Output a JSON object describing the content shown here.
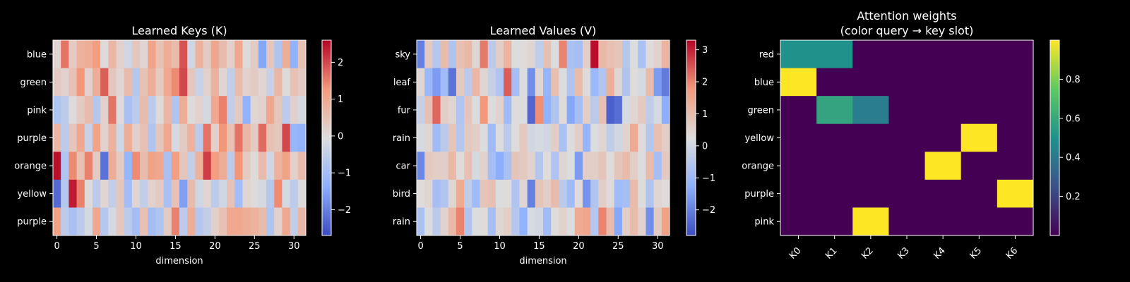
{
  "chart_data": [
    {
      "type": "heatmap",
      "title": "Learned Keys (K)",
      "xlabel": "dimension",
      "ylabel": "",
      "rows": [
        "blue",
        "green",
        "pink",
        "purple",
        "orange",
        "yellow",
        "purple"
      ],
      "x_ticks": [
        0,
        5,
        10,
        15,
        20,
        25,
        30
      ],
      "n_cols": 32,
      "colormap": "coolwarm",
      "vmin": -2.7,
      "vmax": 2.6,
      "colorbar_ticks": [
        -2,
        -1,
        0,
        1,
        2
      ],
      "values": [
        [
          0.1,
          1.6,
          0.3,
          0.8,
          0.9,
          1.2,
          0.0,
          0.7,
          0.2,
          -0.3,
          0.4,
          0.1,
          1.1,
          0.5,
          0.9,
          0.6,
          1.9,
          -0.3,
          0.8,
          0.3,
          1.0,
          0.6,
          0.2,
          1.0,
          0.0,
          0.3,
          -1.5,
          0.4,
          -0.8,
          0.9,
          -1.3,
          0.5
        ],
        [
          0.3,
          0.2,
          0.5,
          1.3,
          0.2,
          0.9,
          1.8,
          0.4,
          0.1,
          0.6,
          -0.7,
          0.5,
          0.9,
          0.3,
          1.0,
          1.4,
          2.0,
          0.4,
          -0.4,
          0.2,
          0.8,
          0.1,
          -0.5,
          0.6,
          0.2,
          0.3,
          0.1,
          -0.4,
          0.7,
          0.0,
          0.5,
          0.3
        ],
        [
          -0.8,
          -0.6,
          0.0,
          0.3,
          0.6,
          -0.7,
          0.2,
          1.6,
          0.0,
          -0.9,
          -0.6,
          0.6,
          -0.6,
          0.0,
          0.7,
          -0.8,
          0.9,
          0.0,
          0.2,
          -0.2,
          1.0,
          1.5,
          -0.5,
          0.3,
          -1.3,
          0.1,
          0.2,
          1.0,
          0.4,
          -0.6,
          0.2,
          -0.2
        ],
        [
          0.7,
          -0.6,
          0.4,
          1.0,
          -0.4,
          1.1,
          0.2,
          0.8,
          -0.3,
          0.9,
          0.2,
          0.5,
          -0.8,
          0.4,
          1.0,
          -0.2,
          0.3,
          0.8,
          -0.6,
          1.6,
          0.2,
          1.3,
          0.5,
          1.6,
          0.7,
          0.3,
          1.7,
          0.5,
          0.4,
          2.0,
          -1.2,
          -1.3
        ],
        [
          2.5,
          -0.8,
          1.4,
          0.5,
          1.5,
          0.3,
          -2.2,
          0.9,
          0.3,
          -1.2,
          1.4,
          0.6,
          1.1,
          1.0,
          -0.9,
          1.2,
          0.4,
          -0.5,
          0.8,
          2.1,
          1.2,
          0.9,
          -0.6,
          1.3,
          0.3,
          0.0,
          0.6,
          -0.3,
          0.8,
          1.1,
          0.2,
          0.6
        ],
        [
          -2.3,
          -0.7,
          2.4,
          1.5,
          0.0,
          -0.6,
          0.1,
          -0.5,
          0.4,
          -1.0,
          0.1,
          -0.5,
          0.2,
          0.3,
          -0.9,
          0.5,
          -1.6,
          0.6,
          -0.3,
          0.1,
          -0.6,
          -0.3,
          0.5,
          -1.0,
          0.1,
          0.0,
          -0.2,
          -0.7,
          1.4,
          -0.2,
          -0.6,
          0.0
        ],
        [
          1.1,
          -0.6,
          -0.9,
          -0.6,
          -0.2,
          1.0,
          -0.7,
          -0.2,
          0.4,
          -0.6,
          -1.0,
          0.5,
          -1.0,
          -0.8,
          0.3,
          1.5,
          -0.6,
          0.9,
          -0.7,
          -0.5,
          0.2,
          0.5,
          1.0,
          1.0,
          0.9,
          0.8,
          0.6,
          -0.8,
          0.2,
          1.0,
          -0.5,
          0.7
        ]
      ]
    },
    {
      "type": "heatmap",
      "title": "Learned Values (V)",
      "xlabel": "dimension",
      "ylabel": "",
      "rows": [
        "sky",
        "leaf",
        "fur",
        "rain",
        "car",
        "bird",
        "rain"
      ],
      "x_ticks": [
        0,
        5,
        10,
        15,
        20,
        25,
        30
      ],
      "n_cols": 32,
      "colormap": "coolwarm",
      "vmin": -2.8,
      "vmax": 3.3,
      "colorbar_ticks": [
        -2,
        -1,
        0,
        1,
        2,
        3
      ],
      "values": [
        [
          -2.0,
          0.7,
          -0.5,
          1.0,
          -0.6,
          0.9,
          1.1,
          0.4,
          2.1,
          -0.4,
          0.6,
          1.2,
          0.2,
          0.3,
          0.4,
          -0.3,
          0.9,
          0.2,
          2.0,
          -0.7,
          -0.8,
          0.6,
          3.2,
          1.1,
          0.9,
          0.8,
          -0.5,
          0.2,
          -0.7,
          0.3,
          0.5,
          1.2
        ],
        [
          0.4,
          -1.0,
          -1.6,
          -0.9,
          -2.2,
          0.7,
          -0.4,
          1.1,
          0.4,
          -0.2,
          -0.6,
          2.4,
          -0.8,
          0.2,
          -1.8,
          0.4,
          -1.1,
          0.9,
          0.2,
          -0.6,
          1.0,
          0.3,
          -1.0,
          -0.6,
          1.3,
          0.4,
          -0.6,
          0.3,
          0.1,
          1.0,
          -1.6,
          -2.1
        ],
        [
          -0.2,
          0.9,
          2.3,
          0.6,
          0.4,
          -0.6,
          0.8,
          0.2,
          1.8,
          0.2,
          0.5,
          -0.9,
          0.3,
          0.2,
          -2.4,
          1.9,
          -1.2,
          -0.6,
          0.3,
          -1.4,
          -0.8,
          0.6,
          -0.4,
          0.9,
          -2.5,
          -2.3,
          0.1,
          0.4,
          0.7,
          -0.3,
          0.1,
          -1.3
        ],
        [
          0.1,
          0.4,
          -0.9,
          -0.4,
          0.8,
          -0.5,
          0.7,
          0.6,
          0.2,
          -0.9,
          0.2,
          -0.4,
          0.3,
          0.7,
          0.0,
          0.1,
          0.0,
          0.6,
          -0.7,
          0.2,
          0.6,
          -1.1,
          0.2,
          0.4,
          -0.3,
          0.0,
          0.5,
          1.4,
          0.3,
          -0.5,
          0.9,
          0.6
        ],
        [
          -1.9,
          0.7,
          0.6,
          0.6,
          1.1,
          0.3,
          0.9,
          0.1,
          0.5,
          -0.8,
          -1.3,
          -0.7,
          0.8,
          0.7,
          0.5,
          -0.5,
          0.3,
          -0.6,
          0.4,
          0.2,
          -1.6,
          0.6,
          0.6,
          0.8,
          0.3,
          0.8,
          1.0,
          0.6,
          0.2,
          1.0,
          -0.8,
          0.7
        ],
        [
          0.3,
          0.4,
          -0.8,
          -0.6,
          0.4,
          1.4,
          -0.3,
          -0.9,
          0.8,
          0.9,
          0.2,
          0.3,
          -0.6,
          0.4,
          -2.0,
          0.8,
          0.6,
          1.0,
          -0.4,
          -0.9,
          0.3,
          -1.7,
          -0.6,
          0.6,
          0.3,
          -0.9,
          -0.8,
          1.0,
          0.2,
          -0.6,
          0.4,
          0.3
        ],
        [
          -0.7,
          0.2,
          -0.4,
          0.5,
          1.1,
          2.0,
          -0.6,
          0.2,
          0.3,
          -0.8,
          0.4,
          0.6,
          -0.5,
          -1.2,
          0.1,
          0.0,
          -0.9,
          0.3,
          0.5,
          0.2,
          1.4,
          1.5,
          -0.5,
          2.0,
          1.0,
          -1.4,
          0.6,
          1.0,
          0.5,
          -1.8,
          0.7,
          1.6
        ]
      ]
    },
    {
      "type": "heatmap",
      "title": "Attention weights",
      "subtitle": "(color query → key slot)",
      "xlabel": "",
      "ylabel": "",
      "rows": [
        "red",
        "blue",
        "green",
        "yellow",
        "orange",
        "purple",
        "pink"
      ],
      "cols": [
        "K0",
        "K1",
        "K2",
        "K3",
        "K4",
        "K5",
        "K6"
      ],
      "colormap": "viridis",
      "vmin": 0.0,
      "vmax": 1.0,
      "colorbar_ticks": [
        0.2,
        0.4,
        0.6,
        0.8
      ],
      "values": [
        [
          0.5,
          0.5,
          0.0,
          0.0,
          0.0,
          0.0,
          0.0
        ],
        [
          1.0,
          0.0,
          0.0,
          0.0,
          0.0,
          0.0,
          0.0
        ],
        [
          0.0,
          0.58,
          0.42,
          0.0,
          0.0,
          0.0,
          0.0
        ],
        [
          0.0,
          0.0,
          0.0,
          0.0,
          0.0,
          1.0,
          0.0
        ],
        [
          0.0,
          0.0,
          0.0,
          0.0,
          1.0,
          0.0,
          0.0
        ],
        [
          0.0,
          0.0,
          0.0,
          0.0,
          0.0,
          0.0,
          1.0
        ],
        [
          0.0,
          0.0,
          1.0,
          0.0,
          0.0,
          0.0,
          0.0
        ]
      ]
    }
  ]
}
